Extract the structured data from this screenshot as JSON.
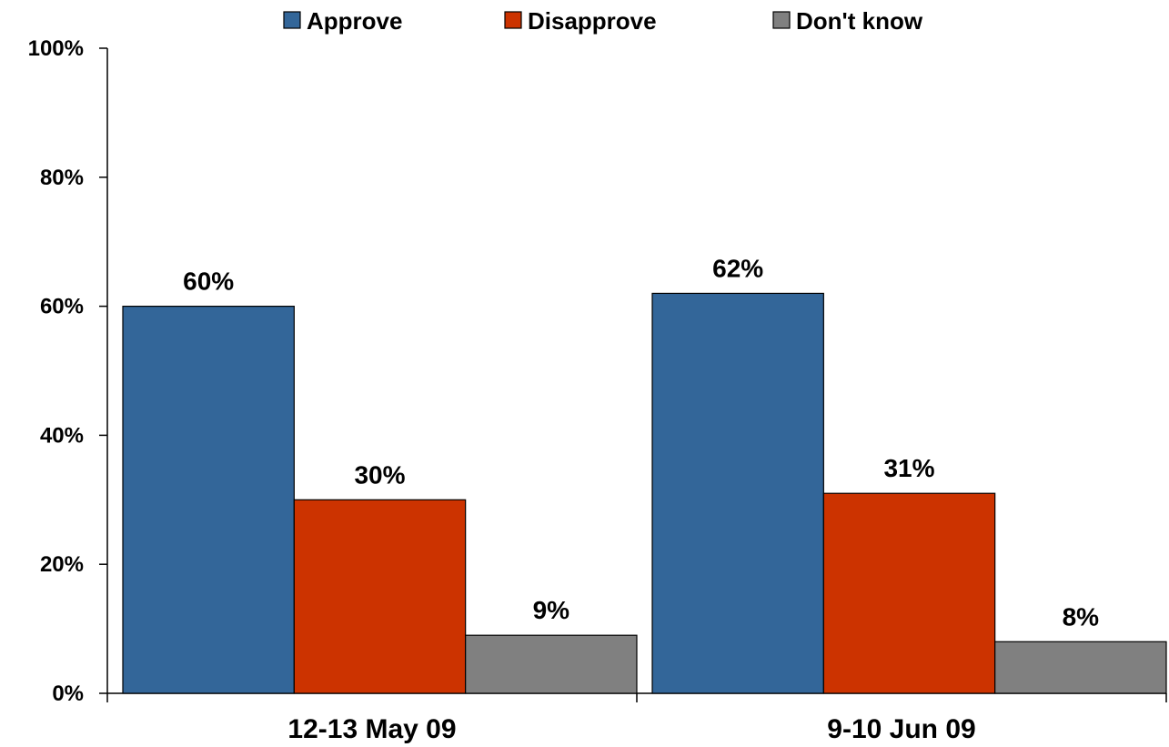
{
  "chart_data": {
    "type": "bar",
    "categories": [
      "12-13 May 09",
      "9-10 Jun 09"
    ],
    "series": [
      {
        "name": "Approve",
        "values": [
          60,
          62
        ],
        "labels": [
          "60%",
          "62%"
        ],
        "color": "#336699"
      },
      {
        "name": "Disapprove",
        "values": [
          30,
          31
        ],
        "labels": [
          "30%",
          "31%"
        ],
        "color": "#CC3300"
      },
      {
        "name": "Don't know",
        "values": [
          9,
          8
        ],
        "labels": [
          "9%",
          "8%"
        ],
        "color": "#808080"
      }
    ],
    "ylim": [
      0,
      100
    ],
    "y_ticks": [
      0,
      20,
      40,
      60,
      80,
      100
    ],
    "y_tick_labels": [
      "0%",
      "20%",
      "40%",
      "60%",
      "80%",
      "100%"
    ],
    "title": "",
    "xlabel": "",
    "ylabel": "",
    "grid": false,
    "legend_position": "top-center"
  }
}
